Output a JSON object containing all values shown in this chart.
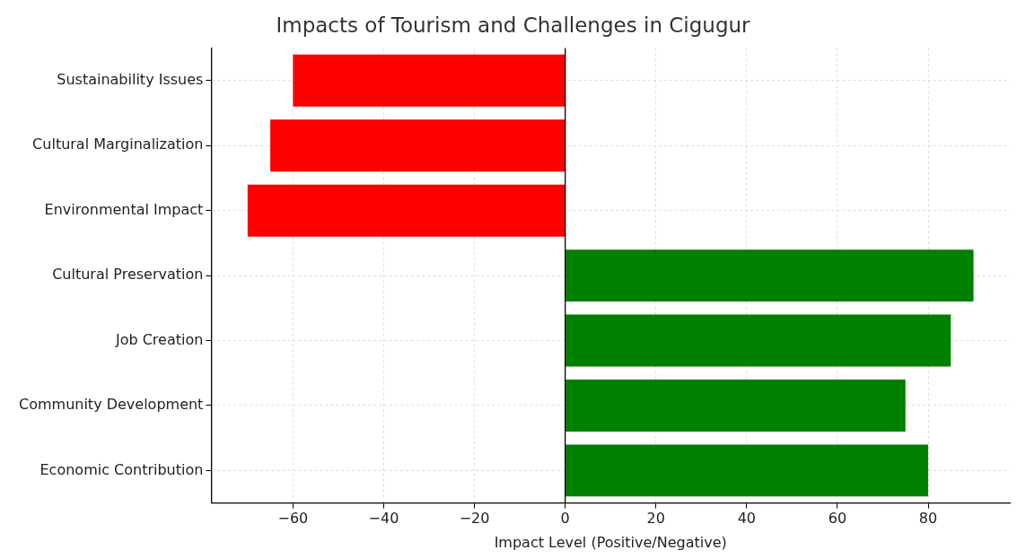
{
  "chart_data": {
    "type": "bar",
    "orientation": "horizontal",
    "title": "Impacts of Tourism and Challenges in Cigugur",
    "xlabel": "Impact Level (Positive/Negative)",
    "categories": [
      "Sustainability Issues",
      "Cultural Marginalization",
      "Environmental Impact",
      "Cultural Preservation",
      "Job Creation",
      "Community Development",
      "Economic Contribution"
    ],
    "values": [
      -60,
      -65,
      -70,
      90,
      85,
      75,
      80
    ],
    "colors": [
      "#ff0000",
      "#ff0000",
      "#ff0000",
      "#008000",
      "#008000",
      "#008000",
      "#008000"
    ],
    "xlim": [
      -78,
      98
    ],
    "xticks": [
      {
        "value": -60,
        "label": "−60"
      },
      {
        "value": -40,
        "label": "−40"
      },
      {
        "value": -20,
        "label": "−20"
      },
      0,
      20,
      40,
      60,
      80
    ],
    "ref_lines": [
      {
        "axis": "x",
        "value": 0,
        "color": "#000000"
      }
    ],
    "grid": true,
    "legend": false
  }
}
